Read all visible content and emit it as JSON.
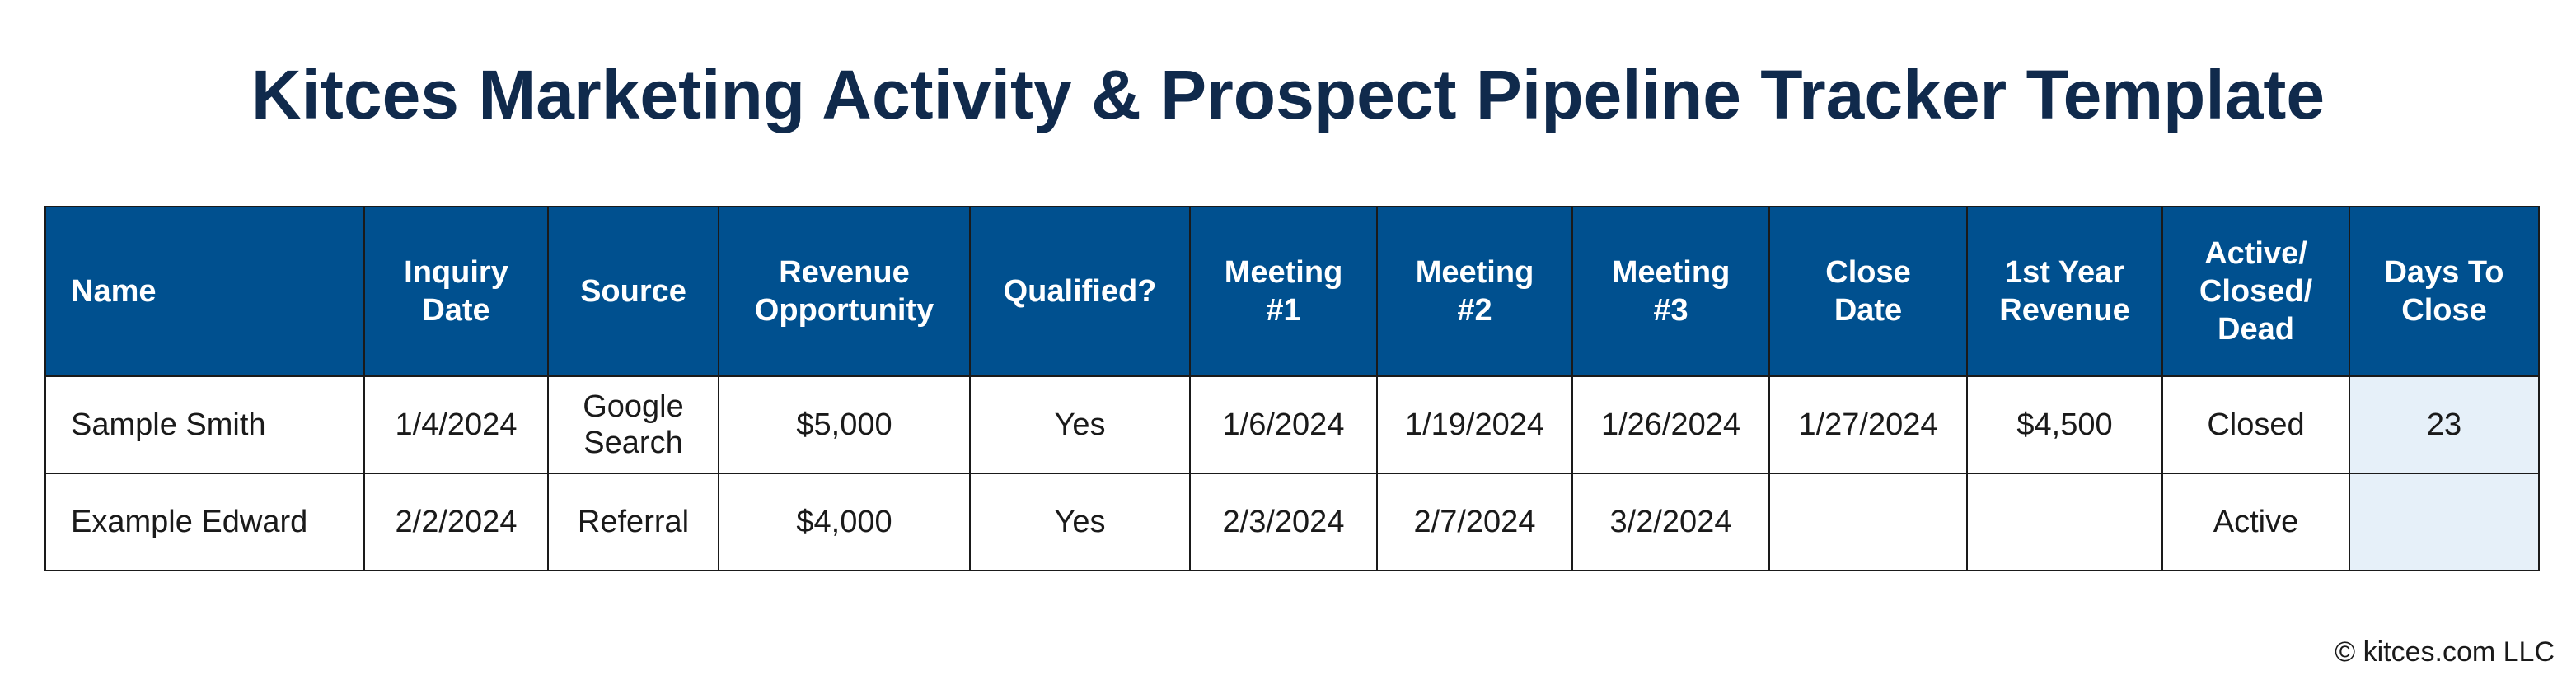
{
  "title": "Kitces Marketing Activity & Prospect Pipeline Tracker Template",
  "table": {
    "headers": {
      "name": "Name",
      "inquiry_date": "Inquiry Date",
      "source": "Source",
      "revenue_opportunity": "Revenue Opportunity",
      "qualified": "Qualified?",
      "meeting_1": "Meeting #1",
      "meeting_2": "Meeting #2",
      "meeting_3": "Meeting #3",
      "close_date": "Close Date",
      "first_year_revenue": "1st Year Revenue",
      "status": "Active/ Closed/ Dead",
      "days_to_close": "Days To Close"
    },
    "rows": [
      {
        "name": "Sample Smith",
        "inquiry_date": "1/4/2024",
        "source": "Google Search",
        "revenue_opportunity": "$5,000",
        "qualified": "Yes",
        "meeting_1": "1/6/2024",
        "meeting_2": "1/19/2024",
        "meeting_3": "1/26/2024",
        "close_date": "1/27/2024",
        "first_year_revenue": "$4,500",
        "status": "Closed",
        "days_to_close": "23"
      },
      {
        "name": "Example Edward",
        "inquiry_date": "2/2/2024",
        "source": "Referral",
        "revenue_opportunity": "$4,000",
        "qualified": "Yes",
        "meeting_1": "2/3/2024",
        "meeting_2": "2/7/2024",
        "meeting_3": "3/2/2024",
        "close_date": "",
        "first_year_revenue": "",
        "status": "Active",
        "days_to_close": ""
      }
    ]
  },
  "colors": {
    "header_bg": "#00508f",
    "title_color": "#102a4c",
    "days_cell_bg": "#e6f0f9"
  },
  "copyright": "© kitces.com LLC"
}
